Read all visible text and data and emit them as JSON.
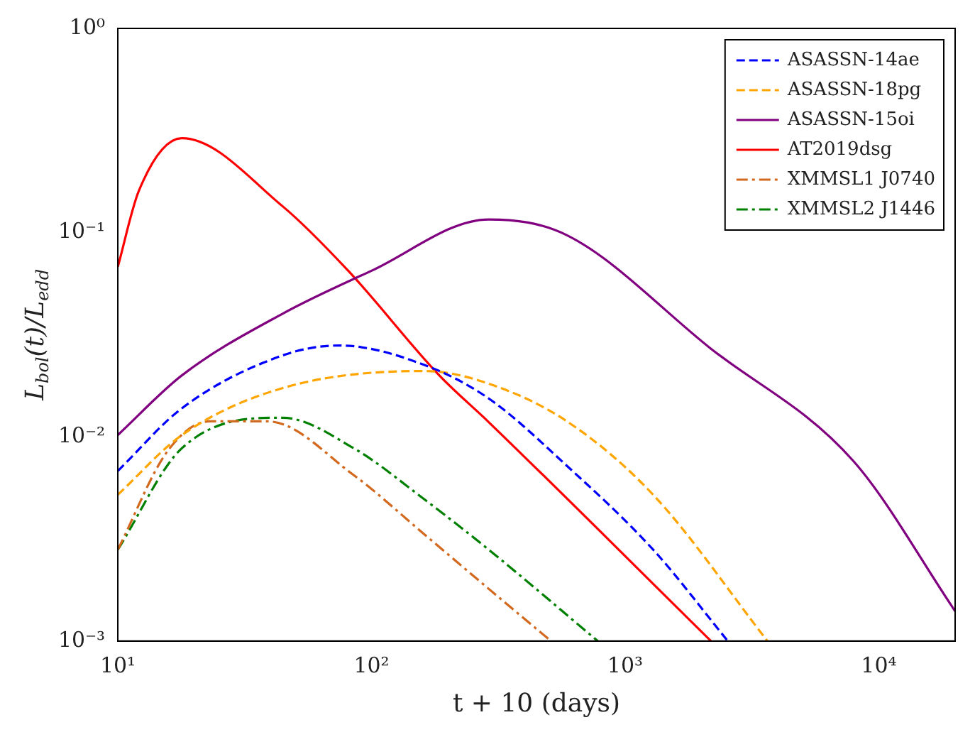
{
  "chart_data": {
    "type": "line",
    "xlabel": "t + 10 (days)",
    "ylabel": "L$_{bol}$(t)/L$_{edd}$",
    "log": "xy",
    "xlim": [
      10,
      20000
    ],
    "ylim": [
      0.001,
      1
    ],
    "xticks": [
      {
        "value": 10,
        "label": "10¹"
      },
      {
        "value": 100,
        "label": "10²"
      },
      {
        "value": 1000,
        "label": "10³"
      },
      {
        "value": 10000,
        "label": "10⁴"
      }
    ],
    "yticks": [
      {
        "value": 0.001,
        "label": "10⁻³"
      },
      {
        "value": 0.01,
        "label": "10⁻²"
      },
      {
        "value": 0.1,
        "label": "10⁻¹"
      },
      {
        "value": 1,
        "label": "10⁰"
      }
    ],
    "legend": "top right",
    "grid": false,
    "marker": "none",
    "series": [
      {
        "name": "ASASSN-14ae",
        "color": "#0000ff",
        "line_style": "dashed",
        "x": [
          10,
          17.9,
          44.5,
          74.6,
          163,
          290,
          590,
          1290,
          2540
        ],
        "values": [
          0.0068,
          0.0138,
          0.025,
          0.028,
          0.0224,
          0.0154,
          0.0072,
          0.0028,
          0.001
        ]
      },
      {
        "name": "ASASSN-18pg",
        "color": "#ffa500",
        "line_style": "dashed",
        "x": [
          10,
          17.9,
          44.5,
          163,
          290,
          590,
          1290,
          3640
        ],
        "values": [
          0.0052,
          0.0102,
          0.0173,
          0.021,
          0.0182,
          0.0119,
          0.0052,
          0.001
        ]
      },
      {
        "name": "ASASSN-15oi",
        "color": "#800080",
        "line_style": "solid",
        "x": [
          10,
          17.9,
          44.5,
          100,
          290,
          590,
          2180,
          7950,
          20000
        ],
        "values": [
          0.0102,
          0.02,
          0.04,
          0.065,
          0.116,
          0.097,
          0.027,
          0.0076,
          0.0014
        ]
      },
      {
        "name": "AT2019dsg",
        "color": "#ff0000",
        "line_style": "solid",
        "x": [
          10,
          12.1,
          17.9,
          44.5,
          81,
          185,
          290,
          2180
        ],
        "values": [
          0.068,
          0.16,
          0.29,
          0.135,
          0.065,
          0.02,
          0.0118,
          0.001
        ]
      },
      {
        "name": "XMMSL1 J0740",
        "color": "#d2691e",
        "line_style": "dashdot",
        "x": [
          10,
          15.7,
          23,
          39,
          85,
          163,
          290,
          510
        ],
        "values": [
          0.0028,
          0.0085,
          0.0119,
          0.0119,
          0.0065,
          0.0033,
          0.0018,
          0.001
        ]
      },
      {
        "name": "XMMSL2 J1446",
        "color": "#008000",
        "line_style": "dashdot",
        "x": [
          10,
          17.9,
          44.5,
          85,
          163,
          290,
          780
        ],
        "values": [
          0.0028,
          0.0088,
          0.0124,
          0.0088,
          0.0049,
          0.0028,
          0.001
        ]
      }
    ]
  }
}
